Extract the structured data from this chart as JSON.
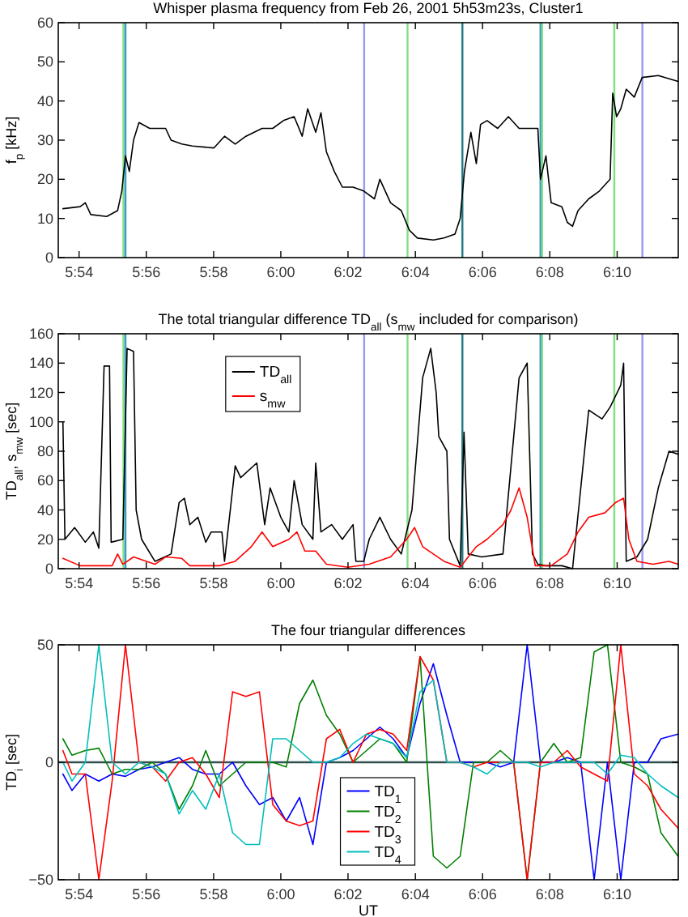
{
  "chart_data": [
    {
      "type": "line",
      "title": "Whisper plasma frequency from Feb 26, 2001 5h53m23s, Cluster1",
      "ylabel": "f$_{p}$ [kHz]",
      "x": [
        5.892,
        5.9005,
        5.9031,
        5.9058,
        5.9137,
        5.9191,
        5.9212,
        5.923,
        5.9249,
        5.927,
        5.9297,
        5.935,
        5.9429,
        5.9456,
        5.9509,
        5.9562,
        5.9668,
        5.9721,
        5.9774,
        5.9827,
        5.9907,
        5.996,
        6.0013,
        6.0066,
        6.0106,
        6.0133,
        6.0173,
        6.0199,
        6.0226,
        6.0265,
        6.0305,
        6.0358,
        6.0411,
        6.0464,
        6.0491,
        6.0544,
        6.0597,
        6.0637,
        6.0677,
        6.0756,
        6.0809,
        6.0863,
        6.0889,
        6.091,
        6.0942,
        6.0969,
        6.099,
        6.1022,
        6.1075,
        6.1128,
        6.1181,
        6.1274,
        6.1287,
        6.1314,
        6.134,
        6.1393,
        6.142,
        6.1446,
        6.1473,
        6.1526,
        6.1579,
        6.1632,
        6.1645,
        6.1664,
        6.1685,
        6.1712,
        6.1752,
        6.1791,
        6.1871,
        6.1969
      ],
      "values": [
        12.5,
        13,
        14,
        11,
        10.5,
        12,
        17,
        26,
        22,
        30,
        34.5,
        33,
        33,
        30,
        29,
        28.5,
        28,
        31,
        29,
        31,
        33,
        33,
        35,
        36,
        31,
        38,
        32,
        37,
        27,
        22,
        18,
        18,
        17,
        15,
        20,
        14,
        12,
        7,
        5,
        4.5,
        5,
        6,
        10,
        22,
        32,
        24,
        34,
        35,
        33,
        36,
        33,
        33,
        20,
        26,
        14,
        13,
        9,
        8,
        12,
        15,
        17,
        20,
        42,
        36,
        38,
        43,
        41,
        46,
        46.5,
        45
      ],
      "color": "#000000",
      "xlim": [
        5.8897,
        6.197
      ],
      "xticks": [
        {
          "value": 5.9,
          "label": "5:54"
        },
        {
          "value": 5.9333,
          "label": "5:56"
        },
        {
          "value": 5.9667,
          "label": "5:58"
        },
        {
          "value": 6,
          "label": "6:00"
        },
        {
          "value": 6.0333,
          "label": "6:02"
        },
        {
          "value": 6.0667,
          "label": "6:04"
        },
        {
          "value": 6.1,
          "label": "6:06"
        },
        {
          "value": 6.1333,
          "label": "6:08"
        },
        {
          "value": 6.1667,
          "label": "6:10"
        }
      ],
      "ylim": [
        0,
        60
      ],
      "yticks": [
        0,
        10,
        20,
        30,
        40,
        50,
        60
      ],
      "grid": false,
      "ref_lines": [
        {
          "axis": "x",
          "value": 5.922,
          "color": "#80e080"
        },
        {
          "axis": "x",
          "value": 5.923,
          "color": "#3a9ac8"
        },
        {
          "axis": "x",
          "value": 6.0413,
          "color": "#9999ee"
        },
        {
          "axis": "x",
          "value": 6.0628,
          "color": "#80e080"
        },
        {
          "axis": "x",
          "value": 6.09,
          "color": "#207a80"
        },
        {
          "axis": "x",
          "value": 6.1287,
          "color": "#3a9ac8"
        },
        {
          "axis": "x",
          "value": 6.1295,
          "color": "#80e080"
        },
        {
          "axis": "x",
          "value": 6.1653,
          "color": "#80e080"
        },
        {
          "axis": "x",
          "value": 6.1792,
          "color": "#9999ee"
        }
      ]
    },
    {
      "type": "line",
      "title": "The total triangular difference TD$_{all}$ (s$_{mw}$ included for comparison)",
      "ylabel": "TD$_{all}$, s$_{mw}$ [sec]",
      "series": [
        {
          "name": "TD$_{all}$",
          "color": "#000000",
          "x": [
            5.892,
            5.893,
            5.8978,
            5.9031,
            5.9071,
            5.9098,
            5.9124,
            5.9151,
            5.9159,
            5.9217,
            5.9238,
            5.927,
            5.9283,
            5.931,
            5.9376,
            5.9456,
            5.9496,
            5.9522,
            5.9549,
            5.9589,
            5.9628,
            5.9655,
            5.9708,
            5.9721,
            5.9774,
            5.9801,
            5.9881,
            5.992,
            5.9947,
            6.0,
            6.004,
            6.0066,
            6.0106,
            6.0159,
            6.0173,
            6.0199,
            6.0252,
            6.0305,
            6.0358,
            6.0372,
            6.0411,
            6.0438,
            6.0491,
            6.0544,
            6.0597,
            6.065,
            6.0703,
            6.0743,
            6.077,
            6.0783,
            6.0823,
            6.0836,
            6.0889,
            6.0908,
            6.0929,
            6.0995,
            6.1101,
            6.1181,
            6.1221,
            6.1247,
            6.1274,
            6.1314,
            6.1393,
            6.1446,
            6.1526,
            6.1592,
            6.1632,
            6.1685,
            6.1699,
            6.1712,
            6.1765,
            6.1818,
            6.1871,
            6.1924,
            6.1969
          ],
          "values": [
            100,
            20,
            28,
            18,
            25,
            14,
            138,
            138,
            18,
            20,
            150,
            148,
            40,
            20,
            5,
            10,
            45,
            48,
            30,
            35,
            18,
            25,
            25,
            5,
            70,
            62,
            72,
            30,
            55,
            35,
            25,
            60,
            30,
            20,
            72,
            25,
            30,
            20,
            30,
            5,
            5,
            20,
            35,
            20,
            10,
            40,
            130,
            150,
            120,
            90,
            80,
            20,
            2,
            93,
            10,
            8,
            10,
            130,
            140,
            10,
            3,
            2,
            2,
            0,
            108,
            102,
            110,
            125,
            140,
            5,
            8,
            20,
            55,
            80,
            78
          ]
        },
        {
          "name": "s$_{mw}$",
          "color": "#ff0000",
          "x": [
            5.892,
            5.9005,
            5.9164,
            5.9191,
            5.9217,
            5.927,
            5.9376,
            5.9429,
            5.9509,
            5.9549,
            5.9695,
            5.9774,
            5.9854,
            5.9907,
            5.996,
            6.004,
            6.008,
            6.0119,
            6.0173,
            6.0226,
            6.0332,
            6.0438,
            6.0544,
            6.0624,
            6.0663,
            6.0703,
            6.0809,
            6.0889,
            6.0969,
            6.1022,
            6.1101,
            6.1141,
            6.1181,
            6.1221,
            6.1261,
            6.134,
            6.142,
            6.1473,
            6.1526,
            6.1606,
            6.1659,
            6.1699,
            6.1725,
            6.1765,
            6.1845,
            6.1924,
            6.1969
          ],
          "values": [
            7,
            2,
            2,
            10,
            3,
            8,
            3,
            8,
            7,
            2,
            2,
            5,
            15,
            25,
            15,
            20,
            25,
            12,
            12,
            3,
            1,
            3,
            8,
            20,
            28,
            15,
            5,
            1,
            15,
            20,
            30,
            40,
            55,
            35,
            2,
            2,
            10,
            25,
            35,
            38,
            45,
            48,
            20,
            5,
            3,
            5,
            3
          ]
        }
      ],
      "xlim": [
        5.8897,
        6.197
      ],
      "xticks": [
        {
          "value": 5.9,
          "label": "5:54"
        },
        {
          "value": 5.9333,
          "label": "5:56"
        },
        {
          "value": 5.9667,
          "label": "5:58"
        },
        {
          "value": 6,
          "label": "6:00"
        },
        {
          "value": 6.0333,
          "label": "6:02"
        },
        {
          "value": 6.0667,
          "label": "6:04"
        },
        {
          "value": 6.1,
          "label": "6:06"
        },
        {
          "value": 6.1333,
          "label": "6:08"
        },
        {
          "value": 6.1667,
          "label": "6:10"
        }
      ],
      "ylim": [
        0,
        160
      ],
      "yticks": [
        0,
        20,
        40,
        60,
        80,
        100,
        120,
        140,
        160
      ],
      "grid": false,
      "legend": "top left",
      "ref_lines": [
        {
          "axis": "x",
          "value": 5.922,
          "color": "#80e080"
        },
        {
          "axis": "x",
          "value": 5.923,
          "color": "#3a9ac8"
        },
        {
          "axis": "x",
          "value": 6.0413,
          "color": "#9999ee"
        },
        {
          "axis": "x",
          "value": 6.0628,
          "color": "#80e080"
        },
        {
          "axis": "x",
          "value": 6.09,
          "color": "#207a80"
        },
        {
          "axis": "x",
          "value": 6.1287,
          "color": "#3a9ac8"
        },
        {
          "axis": "x",
          "value": 6.1295,
          "color": "#80e080"
        },
        {
          "axis": "x",
          "value": 6.1653,
          "color": "#80e080"
        },
        {
          "axis": "x",
          "value": 6.1792,
          "color": "#9999ee"
        }
      ]
    },
    {
      "type": "line",
      "title": "The four triangular differences",
      "xlabel": "UT",
      "ylabel": "TD$_{i}$ [sec]",
      "x": [
        5.892,
        5.8965,
        5.9031,
        5.9098,
        5.9164,
        5.923,
        5.9297,
        5.9363,
        5.9429,
        5.9496,
        5.9562,
        5.9628,
        5.9695,
        5.9761,
        5.9827,
        5.9894,
        5.996,
        6.0027,
        6.0093,
        6.0159,
        6.0226,
        6.0292,
        6.0358,
        6.0425,
        6.0491,
        6.0557,
        6.0624,
        6.069,
        6.0756,
        6.0823,
        6.0889,
        6.0955,
        6.1022,
        6.1088,
        6.1154,
        6.1221,
        6.1287,
        6.1353,
        6.142,
        6.1486,
        6.1553,
        6.1619,
        6.1685,
        6.1752,
        6.1818,
        6.1884,
        6.1969
      ],
      "series": [
        {
          "name": "TD$_{1}$",
          "color": "#0000ff",
          "values": [
            -5,
            -12,
            -5,
            -8,
            -5,
            -6,
            -3,
            -2,
            0,
            2,
            -3,
            -5,
            -5,
            0,
            -10,
            -18,
            -15,
            -25,
            -15,
            -35,
            0,
            2,
            5,
            10,
            15,
            10,
            2,
            25,
            42,
            20,
            0,
            0,
            0,
            -2,
            0,
            50,
            0,
            0,
            2,
            0,
            -50,
            0,
            -50,
            0,
            0,
            10,
            12
          ]
        },
        {
          "name": "TD$_{2}$",
          "color": "#008000",
          "values": [
            10,
            3,
            5,
            6,
            -5,
            -3,
            -3,
            0,
            -5,
            -20,
            -10,
            5,
            -10,
            -5,
            0,
            0,
            0,
            -2,
            25,
            35,
            20,
            12,
            0,
            5,
            10,
            8,
            0,
            45,
            -40,
            -45,
            -40,
            0,
            0,
            5,
            0,
            -50,
            0,
            8,
            0,
            2,
            47,
            50,
            0,
            -2,
            -5,
            -30,
            -40
          ]
        },
        {
          "name": "TD$_{3}$",
          "color": "#ff0000",
          "values": [
            5,
            -5,
            -5,
            -50,
            -8,
            50,
            0,
            -2,
            -8,
            0,
            2,
            -5,
            -15,
            30,
            28,
            30,
            -18,
            -25,
            -27,
            -25,
            10,
            14,
            0,
            12,
            14,
            12,
            5,
            45,
            35,
            0,
            0,
            -2,
            0,
            0,
            0,
            -50,
            0,
            0,
            5,
            -2,
            -5,
            -8,
            50,
            -5,
            -10,
            -20,
            -28
          ]
        },
        {
          "name": "TD$_{4}$",
          "color": "#00bfbf",
          "values": [
            0,
            -8,
            0,
            50,
            0,
            -5,
            0,
            -2,
            -5,
            -22,
            -12,
            -20,
            -5,
            -30,
            -35,
            -35,
            10,
            10,
            5,
            0,
            0,
            2,
            8,
            12,
            10,
            8,
            2,
            30,
            35,
            0,
            0,
            -2,
            -5,
            0,
            0,
            0,
            -2,
            0,
            0,
            0,
            0,
            -5,
            3,
            2,
            -5,
            -10,
            -15
          ]
        }
      ],
      "xlim": [
        5.8897,
        6.197
      ],
      "xticks": [
        {
          "value": 5.9,
          "label": "5:54"
        },
        {
          "value": 5.9333,
          "label": "5:56"
        },
        {
          "value": 5.9667,
          "label": "5:58"
        },
        {
          "value": 6,
          "label": "6:00"
        },
        {
          "value": 6.0333,
          "label": "6:02"
        },
        {
          "value": 6.0667,
          "label": "6:04"
        },
        {
          "value": 6.1,
          "label": "6:06"
        },
        {
          "value": 6.1333,
          "label": "6:08"
        },
        {
          "value": 6.1667,
          "label": "6:10"
        }
      ],
      "ylim": [
        -50,
        50
      ],
      "yticks": [
        {
          "value": -50,
          "label": "−50"
        },
        0,
        50
      ],
      "grid": false,
      "legend": "bottom",
      "ref_lines": [
        {
          "axis": "y",
          "value": 0,
          "color": "#305050"
        }
      ]
    }
  ]
}
